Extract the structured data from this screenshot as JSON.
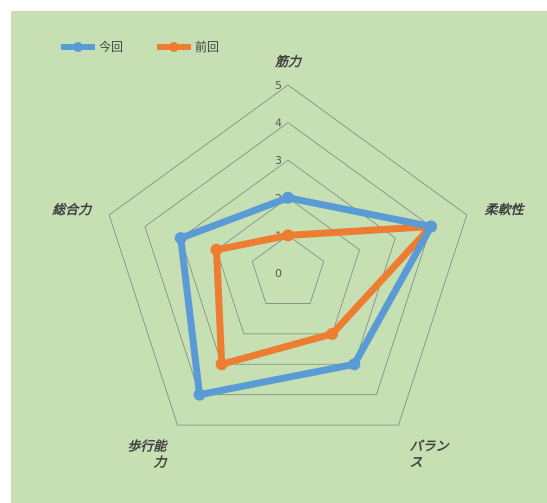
{
  "chart_data": {
    "type": "radar",
    "categories": [
      "筋力",
      "柔軟性",
      "バランス",
      "歩行能力",
      "総合力"
    ],
    "category_lines": [
      [
        "筋力"
      ],
      [
        "柔軟性"
      ],
      [
        "バラン",
        "ス"
      ],
      [
        "歩行能",
        "力"
      ],
      [
        "総合力"
      ]
    ],
    "rmin": 0,
    "rmax": 5,
    "ticks": [
      0,
      1,
      2,
      3,
      4,
      5
    ],
    "grid": true,
    "legend_position": "top-left",
    "series": [
      {
        "name": "今回",
        "values": [
          2,
          4,
          3,
          4,
          3
        ],
        "color": "#5b9bd5"
      },
      {
        "name": "前回",
        "values": [
          1,
          4,
          2,
          3,
          2
        ],
        "color": "#ed7d31"
      }
    ]
  },
  "colors": {
    "background": "#c6e0b4",
    "grid": "#7f8c7f"
  }
}
